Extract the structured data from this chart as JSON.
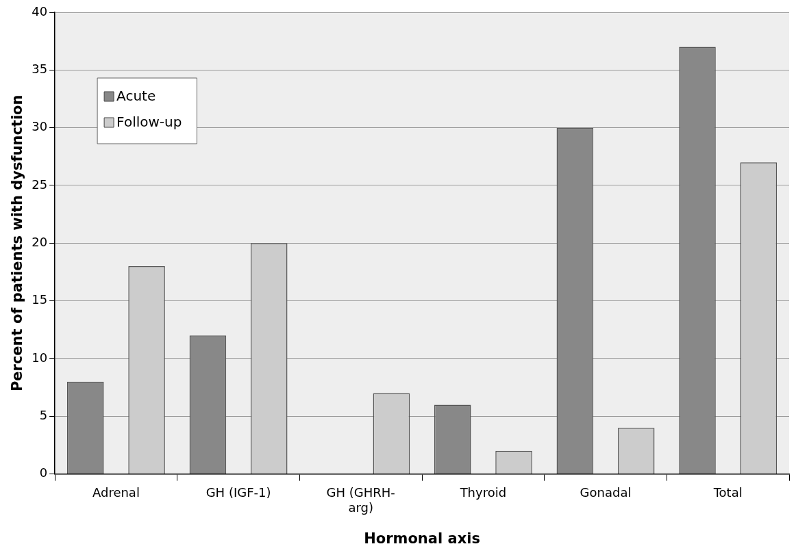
{
  "chart_data": {
    "type": "bar",
    "xlabel": "Hormonal axis",
    "ylabel": "Percent of patients with dysfunction",
    "categories": [
      "Adrenal",
      "GH (IGF-1)",
      "GH (GHRH-arg)",
      "Thyroid",
      "Gonadal",
      "Total"
    ],
    "series": [
      {
        "name": "Acute",
        "color": "#888888",
        "values": [
          8,
          12,
          null,
          6,
          30,
          37
        ]
      },
      {
        "name": "Follow-up",
        "color": "#cccccc",
        "values": [
          18,
          20,
          7,
          2,
          4,
          27
        ]
      }
    ],
    "ylim": [
      0,
      40
    ],
    "yticks": [
      0,
      5,
      10,
      15,
      20,
      25,
      30,
      35,
      40
    ],
    "grid": "y",
    "legend": "top left"
  }
}
